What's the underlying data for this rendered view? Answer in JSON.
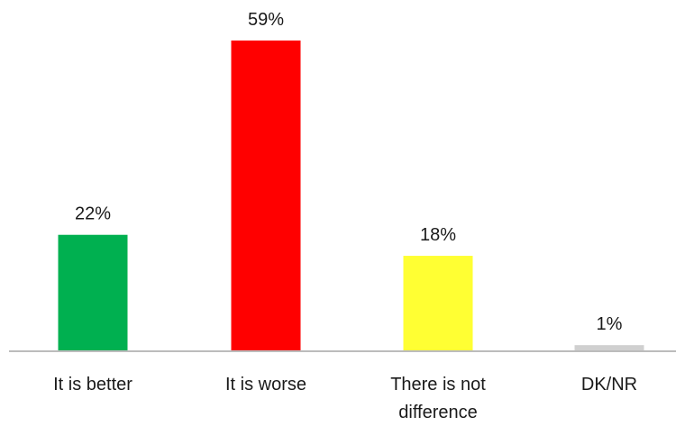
{
  "chart_data": {
    "type": "bar",
    "title": "",
    "xlabel": "",
    "ylabel": "",
    "ylim": [
      0,
      59
    ],
    "grid": false,
    "legend": "none",
    "categories": [
      {
        "label_lines": [
          "It is better"
        ],
        "value": 22,
        "value_label": "22%",
        "color": "#00b050"
      },
      {
        "label_lines": [
          "It is worse"
        ],
        "value": 59,
        "value_label": "59%",
        "color": "#ff0000"
      },
      {
        "label_lines": [
          "There is not",
          "difference"
        ],
        "value": 18,
        "value_label": "18%",
        "color": "#ffff33"
      },
      {
        "label_lines": [
          "DK/NR"
        ],
        "value": 1,
        "value_label": "1%",
        "color": "#d0d0d0"
      }
    ]
  }
}
